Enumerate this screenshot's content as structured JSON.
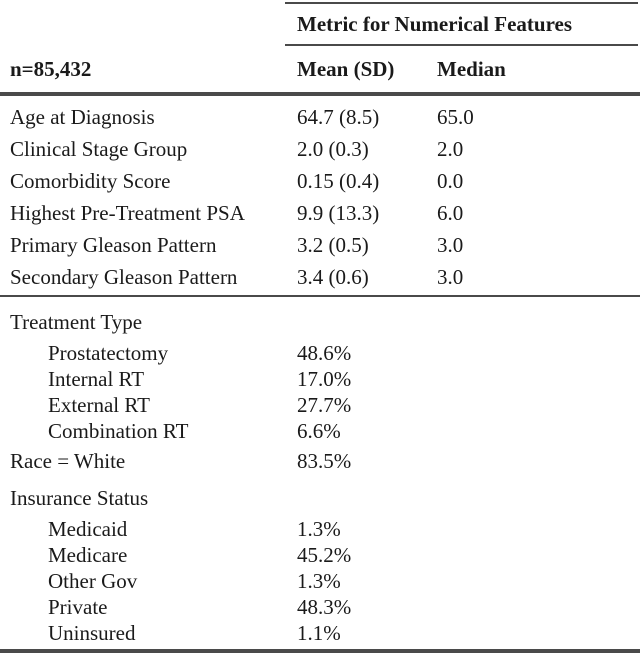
{
  "colors": {
    "background": "#ffffff",
    "text": "#1a1a1a",
    "rule": "#4a4a4a"
  },
  "table": {
    "header": {
      "group_title": "Metric for Numerical Features",
      "col_label": "n=85,432",
      "col_mean": "Mean (SD)",
      "col_median": "Median"
    },
    "numerical_rows": [
      {
        "label": "Age at Diagnosis",
        "mean_sd": "64.7 (8.5)",
        "median": "65.0"
      },
      {
        "label": "Clinical Stage Group",
        "mean_sd": "2.0 (0.3)",
        "median": "2.0"
      },
      {
        "label": "Comorbidity Score",
        "mean_sd": "0.15 (0.4)",
        "median": "0.0"
      },
      {
        "label": "Highest Pre-Treatment PSA",
        "mean_sd": "9.9 (13.3)",
        "median": "6.0"
      },
      {
        "label": "Primary Gleason Pattern",
        "mean_sd": "3.2 (0.5)",
        "median": "3.0"
      },
      {
        "label": "Secondary Gleason Pattern",
        "mean_sd": "3.4 (0.6)",
        "median": "3.0"
      }
    ],
    "categorical_rows": [
      {
        "label": "Treatment Type",
        "value": ""
      },
      {
        "label": "Prostatectomy",
        "value": "48.6%"
      },
      {
        "label": "Internal RT",
        "value": "17.0%"
      },
      {
        "label": "External RT",
        "value": "27.7%"
      },
      {
        "label": "Combination RT",
        "value": "6.6%"
      },
      {
        "label": "Race = White",
        "value": "83.5%"
      },
      {
        "label": "Insurance Status",
        "value": ""
      },
      {
        "label": "Medicaid",
        "value": "1.3%"
      },
      {
        "label": "Medicare",
        "value": "45.2%"
      },
      {
        "label": "Other Gov",
        "value": "1.3%"
      },
      {
        "label": "Private",
        "value": "48.3%"
      },
      {
        "label": "Uninsured",
        "value": "1.1%"
      }
    ]
  }
}
